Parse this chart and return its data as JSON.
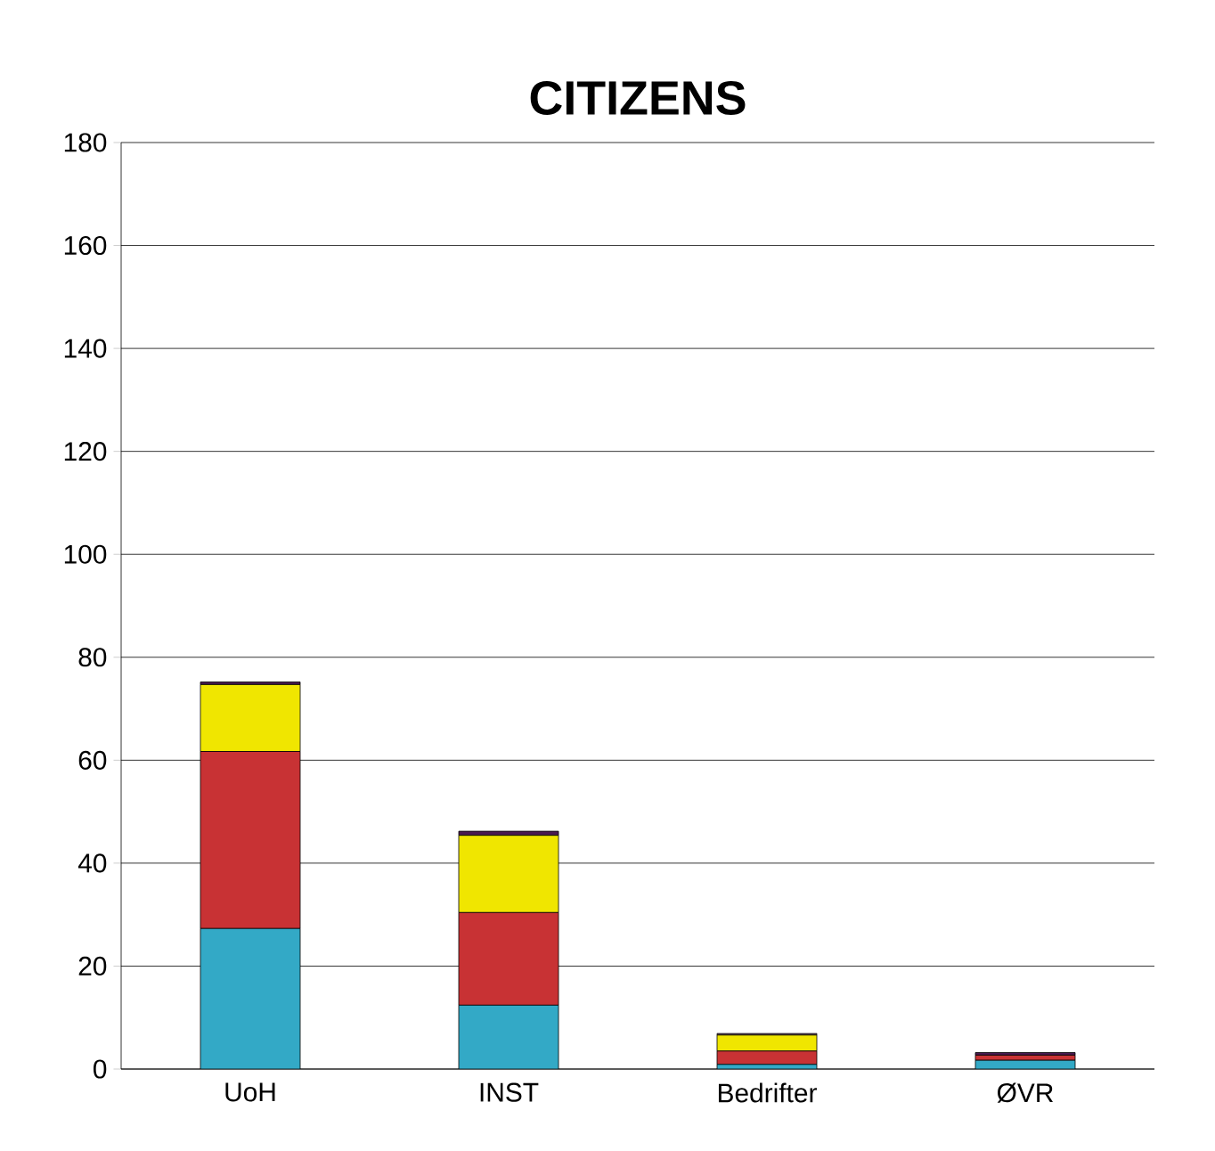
{
  "chart_data": {
    "type": "bar",
    "title": "CITIZENS",
    "categories": [
      "UoH",
      "INST",
      "Bedrifter",
      "ØVR"
    ],
    "series": [
      {
        "color": "#33a9c6",
        "values": [
          27.3,
          12.4,
          0.9,
          1.7
        ]
      },
      {
        "color": "#c83234",
        "values": [
          34.4,
          18,
          2.6,
          1
        ]
      },
      {
        "color": "#f0e600",
        "values": [
          13,
          15,
          3.1,
          0
        ]
      },
      {
        "color": "#4a1a50",
        "values": [
          0.5,
          0.8,
          0.3,
          0.5
        ]
      }
    ],
    "stacked": true,
    "ylim": [
      0,
      180
    ],
    "yticks": [
      0,
      20,
      40,
      60,
      80,
      100,
      120,
      140,
      160,
      180
    ],
    "grid": "y"
  }
}
